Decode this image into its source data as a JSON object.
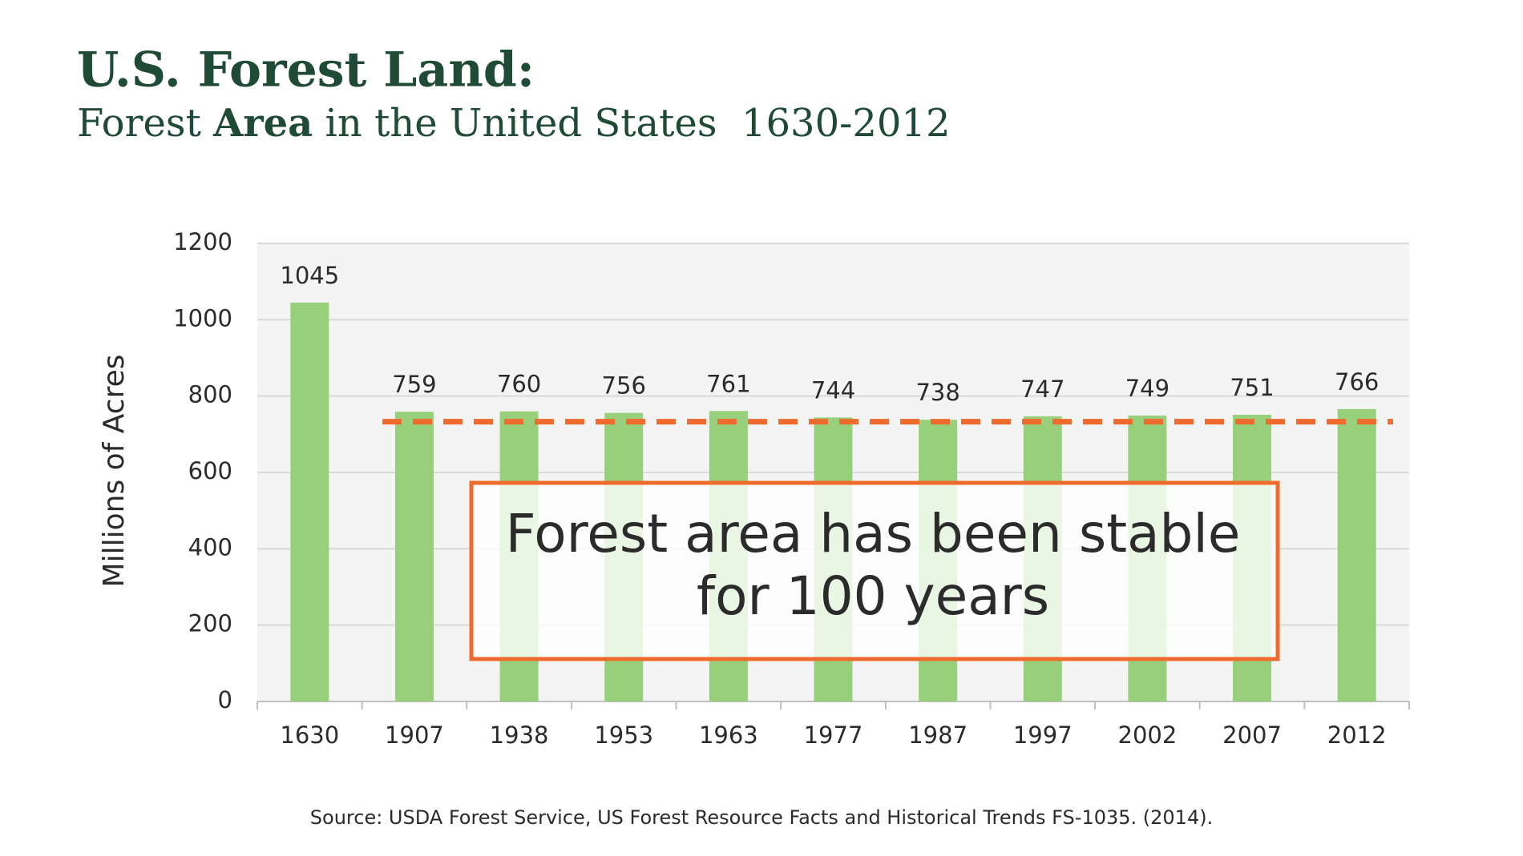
{
  "chart_data": {
    "type": "bar",
    "title": "U.S. Forest Land:",
    "subtitle_parts": [
      "Forest ",
      "Area",
      " in the United States  1630-2012"
    ],
    "y_label": "Millions of Acres",
    "categories": [
      "1630",
      "1907",
      "1938",
      "1953",
      "1963",
      "1977",
      "1987",
      "1997",
      "2002",
      "2007",
      "2012"
    ],
    "values": [
      1045,
      759,
      760,
      756,
      761,
      744,
      738,
      747,
      749,
      751,
      766
    ],
    "color": "#97cf7a",
    "ylim": [
      0,
      1200
    ],
    "yticks": [
      0,
      200,
      400,
      600,
      800,
      1000,
      1200
    ],
    "grid": true,
    "reference_line": {
      "value": 733,
      "color": "#ee6b2d"
    },
    "annotation_lines": [
      "Forest area has been stable",
      "for 100 years"
    ],
    "annotation_color": "#ee6b2d",
    "source": "Source: USDA Forest Service, US Forest Resource Facts and Historical Trends FS-1035. (2014)."
  }
}
